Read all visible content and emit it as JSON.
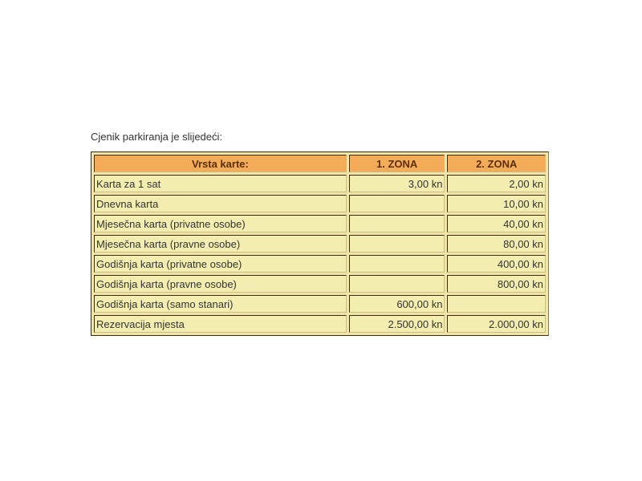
{
  "intro": "Cjenik parkiranja je slijedeći:",
  "colors": {
    "header_bg": "#f4ac58",
    "header_text": "#5a2e08",
    "cell_bg": "#f3eeb0"
  },
  "table": {
    "headers": [
      "Vrsta karte:",
      "1. ZONA",
      "2. ZONA"
    ],
    "rows": [
      [
        "Karta za 1 sat",
        "3,00 kn",
        "2,00 kn"
      ],
      [
        "Dnevna karta",
        "",
        "10,00 kn"
      ],
      [
        "Mjesečna karta (privatne osobe)",
        "",
        "40,00 kn"
      ],
      [
        "Mjesečna karta (pravne osobe)",
        "",
        "80,00 kn"
      ],
      [
        "Godišnja karta (privatne osobe)",
        "",
        "400,00 kn"
      ],
      [
        "Godišnja karta (pravne osobe)",
        "",
        "800,00 kn"
      ],
      [
        "Godišnja karta (samo stanari)",
        "600,00 kn",
        ""
      ],
      [
        "Rezervacija mjesta",
        "2.500,00 kn",
        "2.000,00 kn"
      ]
    ]
  }
}
